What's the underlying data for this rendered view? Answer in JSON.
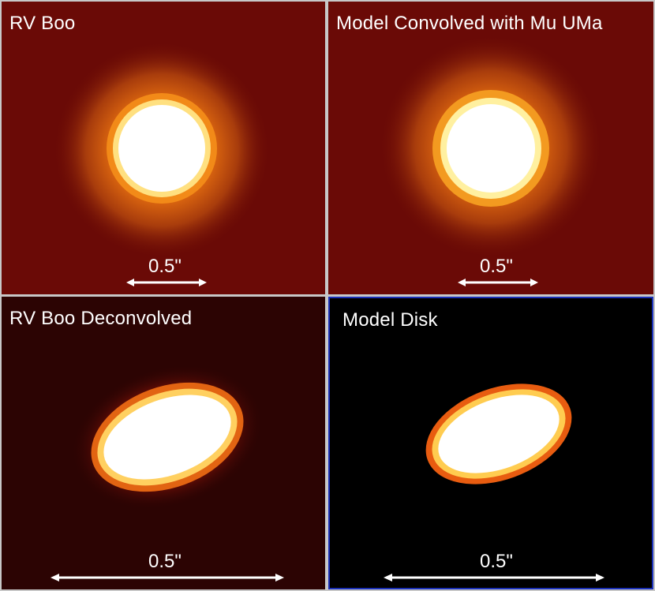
{
  "panels": {
    "top_left": {
      "title": "RV Boo",
      "scale_label": "0.5\""
    },
    "top_right": {
      "title": "Model Convolved with Mu UMa",
      "scale_label": "0.5\""
    },
    "bottom_left": {
      "title": "RV Boo Deconvolved",
      "scale_label": "0.5\""
    },
    "bottom_right": {
      "title": "Model Disk",
      "scale_label": "0.5\""
    }
  },
  "colors": {
    "background_red": "#6a0a06",
    "background_dark": "#2c0403",
    "background_black": "#000000",
    "highlight_border": "#1a2fb8",
    "saturated_core": "#ffffff"
  }
}
